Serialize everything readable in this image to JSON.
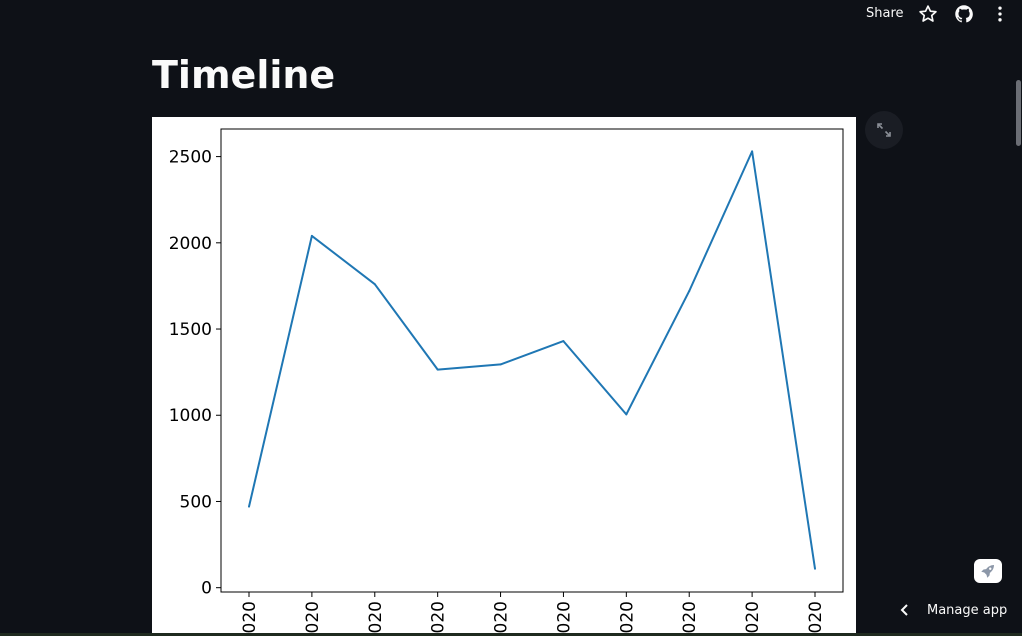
{
  "header": {
    "share_label": "Share",
    "icons": [
      "star-icon",
      "github-icon",
      "more-vertical-icon"
    ]
  },
  "page": {
    "title": "Timeline"
  },
  "chart_data": {
    "type": "line",
    "title": "",
    "xlabel": "",
    "ylabel": "",
    "x_tick_labels": [
      "020",
      "020",
      "020",
      "020",
      "020",
      "020",
      "020",
      "020",
      "020",
      "020"
    ],
    "values": [
      470,
      2040,
      1760,
      1265,
      1295,
      1430,
      1005,
      1720,
      2530,
      110
    ],
    "y_ticks": [
      0,
      500,
      1000,
      1500,
      2000,
      2500
    ],
    "ylim": [
      -25,
      2660
    ],
    "line_color": "#1f77b4",
    "grid": false,
    "legend": "none"
  },
  "footer": {
    "manage_app_label": "Manage app",
    "deploy_icon": "rocket-icon"
  }
}
